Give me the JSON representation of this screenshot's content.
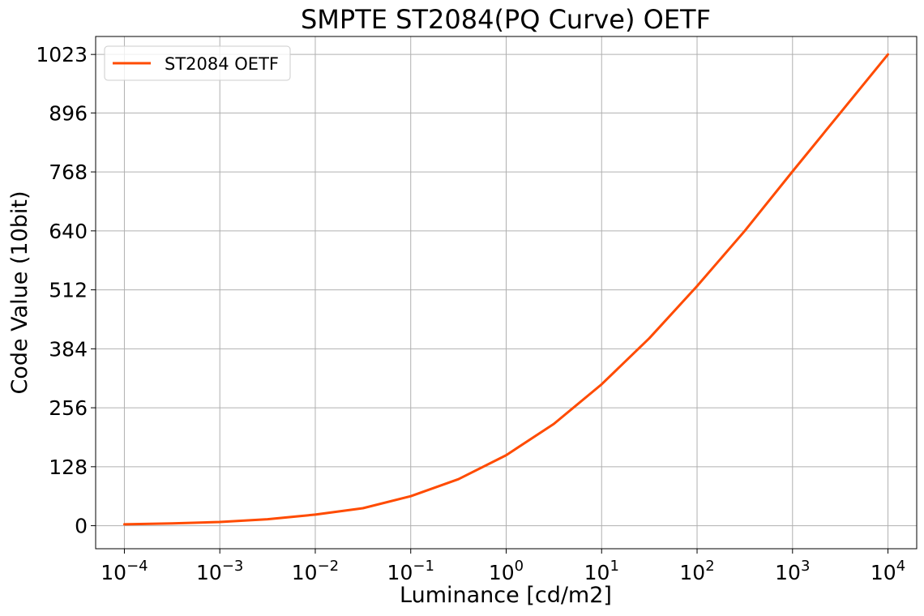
{
  "chart_data": {
    "type": "line",
    "title": "SMPTE ST2084(PQ Curve) OETF",
    "xlabel": "Luminance [cd/m2]",
    "ylabel": "Code Value (10bit)",
    "x_scale": "log",
    "xlim": [
      5e-05,
      20000
    ],
    "ylim": [
      -50,
      1062
    ],
    "x_ticks": [
      {
        "value": 0.0001,
        "base": "10",
        "exp": "−4"
      },
      {
        "value": 0.001,
        "base": "10",
        "exp": "−3"
      },
      {
        "value": 0.01,
        "base": "10",
        "exp": "−2"
      },
      {
        "value": 0.1,
        "base": "10",
        "exp": "−1"
      },
      {
        "value": 1,
        "base": "10",
        "exp": "0"
      },
      {
        "value": 10,
        "base": "10",
        "exp": "1"
      },
      {
        "value": 100,
        "base": "10",
        "exp": "2"
      },
      {
        "value": 1000,
        "base": "10",
        "exp": "3"
      },
      {
        "value": 10000,
        "base": "10",
        "exp": "4"
      }
    ],
    "y_ticks": [
      0,
      128,
      256,
      384,
      512,
      640,
      768,
      896,
      1023
    ],
    "y_tick_labels": [
      "0",
      "128",
      "256",
      "384",
      "512",
      "640",
      "768",
      "896",
      "1023"
    ],
    "grid": true,
    "legend_position": "top-left",
    "series": [
      {
        "name": "ST2084 OETF",
        "color": "#ff4b00",
        "x": [
          0.0001,
          0.000316,
          0.001,
          0.00316,
          0.01,
          0.0316,
          0.1,
          0.316,
          1,
          3.16,
          10,
          31.6,
          100,
          316,
          1000,
          3162,
          10000
        ],
        "y": [
          3,
          5,
          8,
          14,
          24,
          38,
          64,
          101,
          153,
          221,
          307,
          407,
          520,
          640,
          769,
          896,
          1023
        ]
      }
    ]
  }
}
